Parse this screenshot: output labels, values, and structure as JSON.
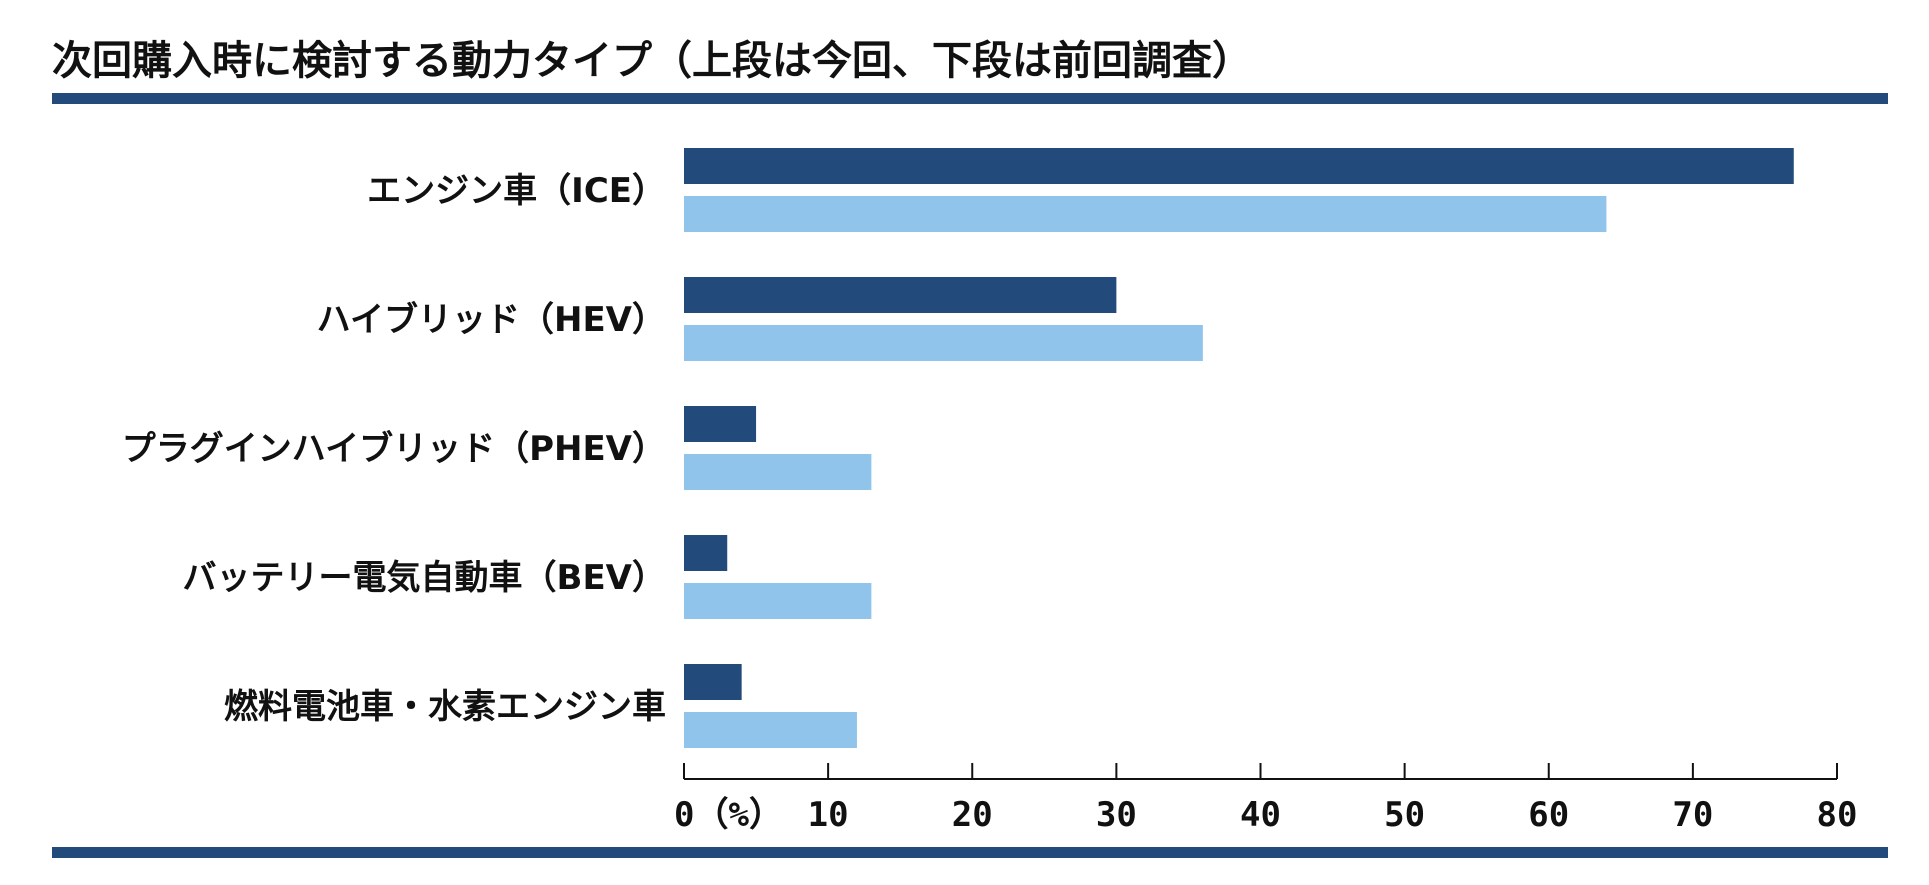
{
  "chart_data": {
    "type": "bar",
    "orientation": "horizontal",
    "title": "次回購入時に検討する動力タイプ（上段は今回、下段は前回調査）",
    "categories": [
      "エンジン車（ICE）",
      "ハイブリッド（HEV）",
      "プラグインハイブリッド（PHEV）",
      "バッテリー電気自動車（BEV）",
      "燃料電池車・水素エンジン車"
    ],
    "series": [
      {
        "values": [
          77,
          30,
          5,
          3,
          4
        ]
      },
      {
        "values": [
          64,
          36,
          13,
          13,
          12
        ]
      }
    ],
    "series_colors": [
      "#224a7a",
      "#90c4ea"
    ],
    "rule_color": "#224a7a",
    "xlim": [
      0,
      80
    ],
    "xticks": [
      0,
      10,
      20,
      30,
      40,
      50,
      60,
      70,
      80
    ],
    "tick_labels": [
      "0（%）",
      "10",
      "20",
      "30",
      "40",
      "50",
      "60",
      "70",
      "80"
    ],
    "grid": false,
    "legend": "none"
  }
}
